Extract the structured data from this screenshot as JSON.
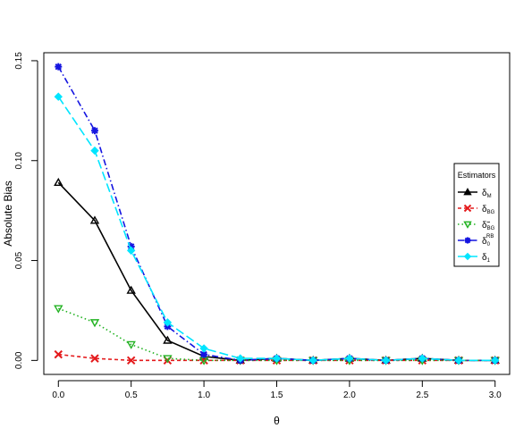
{
  "chart_data": {
    "type": "line",
    "xlabel": "θ",
    "ylabel": "Absolute Bias",
    "xlim": [
      -0.1,
      3.1
    ],
    "ylim": [
      -0.007,
      0.154
    ],
    "x_ticks": [
      "0.0",
      "0.5",
      "1.0",
      "1.5",
      "2.0",
      "2.5",
      "3.0"
    ],
    "y_ticks": [
      "0.00",
      "0.05",
      "0.10",
      "0.15"
    ],
    "grid": false,
    "legend": {
      "title": "Estimators",
      "placement": "right"
    },
    "x": [
      0,
      0.25,
      0.5,
      0.75,
      1.0,
      1.25,
      1.5,
      1.75,
      2.0,
      2.25,
      2.5,
      2.75,
      3.0
    ],
    "series": [
      {
        "name": "δM",
        "label_base": "δ",
        "label_sub": "M",
        "label_sup": "",
        "color": "#000000",
        "dash": "",
        "marker": "triangle-open",
        "legend_marker": "triangle-filled",
        "values": [
          0.089,
          0.07,
          0.035,
          0.01,
          0.002,
          0.0,
          0.001,
          0.0,
          0.001,
          0.0,
          0.001,
          0.0,
          0.0
        ]
      },
      {
        "name": "δBG",
        "label_base": "δ",
        "label_sub": "BG",
        "label_sup": "",
        "color": "#e41a1c",
        "dash": "4,3",
        "marker": "cross",
        "values": [
          0.003,
          0.001,
          0.0,
          0.0,
          0.0,
          0.0,
          0.0,
          0.0,
          0.0,
          0.0,
          0.0,
          0.0,
          0.0
        ]
      },
      {
        "name": "δ̃BG",
        "label_base": "δ̃",
        "label_sub": "BG",
        "label_sup": "",
        "color": "#22b222",
        "dash": "1.5,3",
        "marker": "triangle-down-open",
        "values": [
          0.026,
          0.019,
          0.008,
          0.001,
          0.0,
          0.0,
          0.0,
          0.0,
          0.0,
          0.0,
          0.0,
          0.0,
          0.0
        ]
      },
      {
        "name": "δ0RB",
        "label_base": "δ",
        "label_sub": "0",
        "label_sup": "RB",
        "color": "#1414e0",
        "dash": "7,3,1.5,3",
        "marker": "asterisk",
        "values": [
          0.147,
          0.115,
          0.057,
          0.017,
          0.003,
          0.0,
          0.001,
          0.0,
          0.001,
          0.0,
          0.001,
          0.0,
          0.0
        ]
      },
      {
        "name": "δ1",
        "label_base": "δ",
        "label_sub": "1",
        "label_sup": "",
        "color": "#00e5ff",
        "dash": "10,4",
        "marker": "diamond",
        "values": [
          0.132,
          0.105,
          0.055,
          0.019,
          0.006,
          0.001,
          0.001,
          0.0,
          0.001,
          0.0,
          0.001,
          0.0,
          0.0
        ]
      }
    ]
  }
}
